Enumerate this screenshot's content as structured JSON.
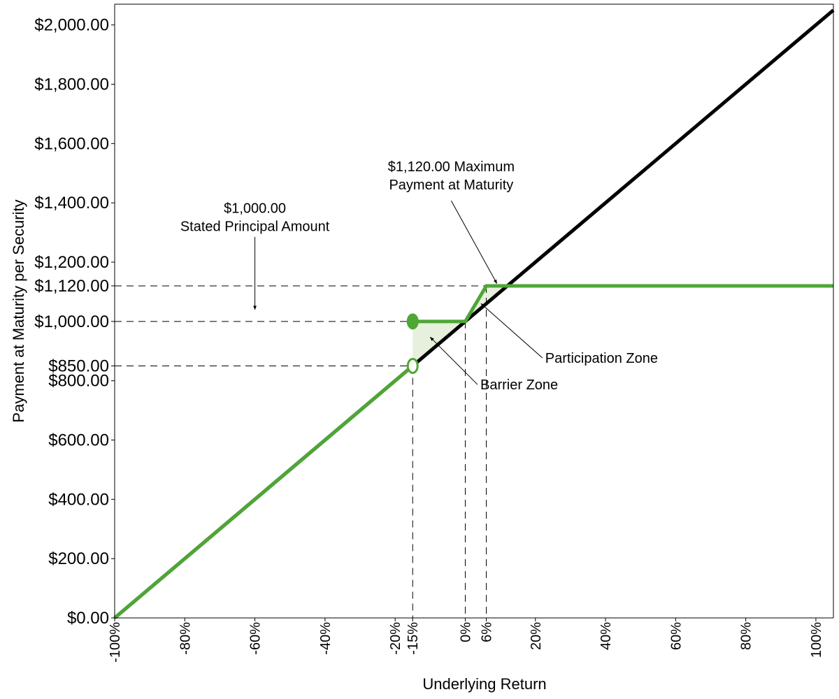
{
  "chart_data": {
    "type": "line",
    "title": "",
    "xlabel": "Underlying Return",
    "ylabel": "Payment at Maturity per Security",
    "xlim": [
      -100,
      105
    ],
    "ylim": [
      0,
      2070
    ],
    "grid": false,
    "x_ticks": [
      {
        "value": -100,
        "label": "-100%"
      },
      {
        "value": -80,
        "label": "-80%"
      },
      {
        "value": -60,
        "label": "-60%"
      },
      {
        "value": -40,
        "label": "-40%"
      },
      {
        "value": -20,
        "label": "-20%"
      },
      {
        "value": -15,
        "label": "-15%"
      },
      {
        "value": 0,
        "label": "0%"
      },
      {
        "value": 6,
        "label": "6%"
      },
      {
        "value": 20,
        "label": "20%"
      },
      {
        "value": 40,
        "label": "40%"
      },
      {
        "value": 60,
        "label": "60%"
      },
      {
        "value": 80,
        "label": "80%"
      },
      {
        "value": 100,
        "label": "100%"
      }
    ],
    "y_ticks": [
      {
        "value": 0,
        "label": "$0.00"
      },
      {
        "value": 200,
        "label": "$200.00"
      },
      {
        "value": 400,
        "label": "$400.00"
      },
      {
        "value": 600,
        "label": "$600.00"
      },
      {
        "value": 800,
        "label": "$800.00"
      },
      {
        "value": 850,
        "label": "$850.00"
      },
      {
        "value": 1000,
        "label": "$1,000.00"
      },
      {
        "value": 1120,
        "label": "$1,120.00"
      },
      {
        "value": 1200,
        "label": "$1,200.00"
      },
      {
        "value": 1400,
        "label": "$1,400.00"
      },
      {
        "value": 1600,
        "label": "$1,600.00"
      },
      {
        "value": 1800,
        "label": "$1,800.00"
      },
      {
        "value": 2000,
        "label": "$2,000.00"
      }
    ],
    "series": [
      {
        "role": "underlying",
        "color": "#000000",
        "x": [
          -100,
          105
        ],
        "y": [
          0,
          2050
        ]
      },
      {
        "role": "payment-lower",
        "color": "#4ea635",
        "x": [
          -100,
          -15
        ],
        "y": [
          0,
          850
        ]
      },
      {
        "role": "payment-upper",
        "color": "#4ea635",
        "x": [
          -15,
          0,
          6,
          105
        ],
        "y": [
          1000,
          1000,
          1120,
          1120
        ]
      }
    ],
    "markers": [
      {
        "type": "filled-circle",
        "x": -15,
        "y": 1000,
        "color": "#4ea635"
      },
      {
        "type": "open-circle",
        "x": -15,
        "y": 850,
        "color": "#4ea635"
      }
    ],
    "shaded_regions": [
      {
        "name": "barrier-zone",
        "color": "#e6f0dc",
        "points": [
          [
            -15,
            850
          ],
          [
            -15,
            1000
          ],
          [
            0,
            1000
          ]
        ]
      },
      {
        "name": "participation-zone",
        "color": "#e6f0dc",
        "points": [
          [
            0,
            1000
          ],
          [
            6,
            1120
          ],
          [
            12,
            1120
          ]
        ]
      }
    ],
    "reference_lines": [
      {
        "orientation": "horizontal",
        "y": 1120,
        "x_to": 6
      },
      {
        "orientation": "horizontal",
        "y": 1000,
        "x_to": -15
      },
      {
        "orientation": "horizontal",
        "y": 850,
        "x_to": -15
      },
      {
        "orientation": "vertical",
        "x": -15,
        "y_from": 850
      },
      {
        "orientation": "vertical",
        "x": 0,
        "y_from": 1000
      },
      {
        "orientation": "vertical",
        "x": 6,
        "y_from": 1120
      }
    ],
    "annotations": [
      {
        "name": "stated-principal",
        "lines": [
          "$1,000.00",
          "Stated Principal Amount"
        ],
        "text_at": [
          -60,
          1305
        ],
        "arrow_from": [
          -60,
          1285
        ],
        "arrow_to": [
          -60,
          1040
        ]
      },
      {
        "name": "maximum-payment",
        "lines": [
          "$1,120.00 Maximum",
          "Payment at Maturity"
        ],
        "text_at": [
          -4,
          1445
        ],
        "arrow_from": [
          -4,
          1407
        ],
        "arrow_to": [
          9,
          1128
        ]
      },
      {
        "name": "participation-zone",
        "lines": [
          "Participation Zone"
        ],
        "text_at": [
          22,
          877
        ],
        "arrow_from": [
          22,
          877
        ],
        "arrow_to": [
          4.5,
          1060
        ]
      },
      {
        "name": "barrier-zone",
        "lines": [
          "Barrier Zone"
        ],
        "text_at": [
          3.5,
          787
        ],
        "arrow_from": [
          3.5,
          787
        ],
        "arrow_to": [
          -10,
          947
        ]
      }
    ]
  }
}
